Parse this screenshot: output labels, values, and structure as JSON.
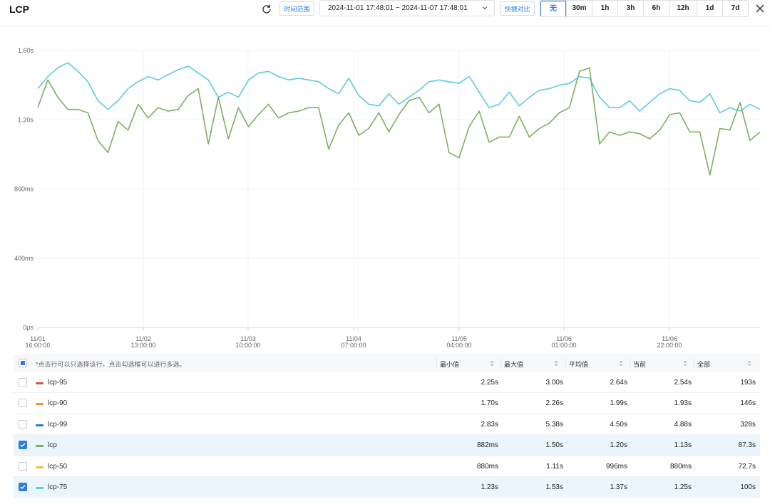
{
  "header": {
    "title": "LCP",
    "time_range_label": "时间范围",
    "time_range_value": "2024-11-01 17:48:01 ~ 2024-11-07 17:48:01",
    "compare_label": "快捷对比",
    "compare_options": [
      "无",
      "30m",
      "1h",
      "3h",
      "6h",
      "12h",
      "1d",
      "7d"
    ],
    "compare_selected": "无"
  },
  "icons": {
    "refresh": "refresh-icon",
    "chevron": "chevron-down-icon",
    "close": "close-icon",
    "sort": "sort-icon"
  },
  "chart_data": {
    "type": "line",
    "y_ticks": [
      "0μs",
      "400ms",
      "800ms",
      "1.20s",
      "1.60s"
    ],
    "y_tick_values": [
      0,
      400,
      800,
      1200,
      1600
    ],
    "ylim": [
      0,
      1600
    ],
    "x_ticks": [
      {
        "date": "11/01",
        "time": "16:00:00"
      },
      {
        "date": "11/02",
        "time": "13:00:00"
      },
      {
        "date": "11/03",
        "time": "10:00:00"
      },
      {
        "date": "11/04",
        "time": "07:00:00"
      },
      {
        "date": "11/05",
        "time": "04:00:00"
      },
      {
        "date": "11/06",
        "time": "01:00:00"
      },
      {
        "date": "11/06",
        "time": "22:00:00"
      }
    ],
    "grid": "vertical at x ticks, horizontal at y ticks",
    "series": [
      {
        "name": "lcp-75",
        "color": "#5ccbe0",
        "values": [
          1380,
          1450,
          1500,
          1530,
          1480,
          1420,
          1310,
          1260,
          1310,
          1380,
          1420,
          1450,
          1430,
          1460,
          1490,
          1510,
          1470,
          1430,
          1330,
          1360,
          1330,
          1430,
          1470,
          1480,
          1450,
          1430,
          1440,
          1430,
          1420,
          1380,
          1350,
          1440,
          1340,
          1290,
          1280,
          1350,
          1290,
          1330,
          1370,
          1420,
          1430,
          1420,
          1410,
          1450,
          1360,
          1270,
          1290,
          1360,
          1280,
          1330,
          1370,
          1380,
          1400,
          1410,
          1450,
          1440,
          1330,
          1270,
          1270,
          1310,
          1250,
          1300,
          1350,
          1380,
          1370,
          1310,
          1300,
          1350,
          1240,
          1270,
          1250,
          1290,
          1260
        ]
      },
      {
        "name": "lcp",
        "color": "#7cb061",
        "values": [
          1270,
          1430,
          1330,
          1260,
          1260,
          1240,
          1080,
          1010,
          1190,
          1140,
          1290,
          1210,
          1270,
          1250,
          1260,
          1340,
          1380,
          1060,
          1330,
          1090,
          1270,
          1160,
          1230,
          1290,
          1210,
          1240,
          1250,
          1270,
          1270,
          1030,
          1170,
          1240,
          1110,
          1150,
          1240,
          1130,
          1230,
          1310,
          1330,
          1240,
          1290,
          1010,
          980,
          1160,
          1250,
          1070,
          1100,
          1100,
          1220,
          1100,
          1150,
          1180,
          1240,
          1270,
          1480,
          1500,
          1060,
          1130,
          1110,
          1130,
          1120,
          1090,
          1140,
          1230,
          1240,
          1130,
          1130,
          880,
          1150,
          1140,
          1300,
          1080,
          1130
        ]
      }
    ]
  },
  "table": {
    "hint": "*点击行可以只选择该行，点击勾选框可以进行多选。",
    "columns": [
      "最小值",
      "最大值",
      "平均值",
      "当前",
      "全部"
    ],
    "rows": [
      {
        "name": "lcp-95",
        "color": "#d9534f",
        "checked": false,
        "values": [
          "2.25s",
          "3.00s",
          "2.64s",
          "2.54s",
          "193s"
        ]
      },
      {
        "name": "lcp-90",
        "color": "#f0913a",
        "checked": false,
        "values": [
          "1.70s",
          "2.26s",
          "1.99s",
          "1.93s",
          "146s"
        ]
      },
      {
        "name": "lcp-99",
        "color": "#2b7bb9",
        "checked": false,
        "values": [
          "2.83s",
          "5.38s",
          "4.50s",
          "4.88s",
          "328s"
        ]
      },
      {
        "name": "lcp",
        "color": "#7cb061",
        "checked": true,
        "values": [
          "882ms",
          "1.50s",
          "1.20s",
          "1.13s",
          "87.3s"
        ]
      },
      {
        "name": "lcp-50",
        "color": "#e8c440",
        "checked": false,
        "values": [
          "880ms",
          "1.11s",
          "996ms",
          "880ms",
          "72.7s"
        ]
      },
      {
        "name": "lcp-75",
        "color": "#5ccbe0",
        "checked": true,
        "values": [
          "1.23s",
          "1.53s",
          "1.37s",
          "1.25s",
          "100s"
        ]
      }
    ]
  }
}
